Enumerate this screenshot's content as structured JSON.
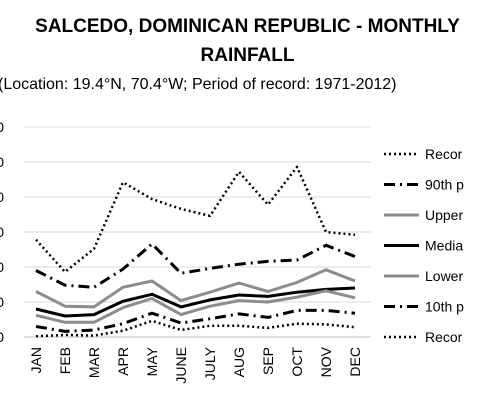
{
  "chart_data": {
    "type": "line",
    "title_line1": "SALCEDO, DOMINICAN REPUBLIC - MONTHLY",
    "title_line2": "RAINFALL",
    "subtitle": "(Location: 19.4°N, 70.4°W; Period of record: 1971-2012)",
    "categories": [
      "JAN",
      "FEB",
      "MAR",
      "APR",
      "MAY",
      "JUNE",
      "JULY",
      "AUG",
      "SEP",
      "OCT",
      "NOV",
      "DEC"
    ],
    "y_tick_labels": [
      "0",
      "0",
      "0",
      "0",
      "0",
      "0",
      "0"
    ],
    "ylim": [
      0,
      300
    ],
    "grid": true,
    "legend_position": "right (cropped)",
    "series": [
      {
        "name": "Recor",
        "style": "dotted",
        "width": 2.5,
        "color": "#000000",
        "values": [
          139,
          93,
          126,
          221,
          197,
          183,
          173,
          236,
          189,
          243,
          150,
          146
        ]
      },
      {
        "name": "90th p",
        "style": "dashdot",
        "width": 3,
        "color": "#000000",
        "values": [
          95,
          74,
          71,
          97,
          133,
          91,
          98,
          104,
          108,
          110,
          131,
          115
        ]
      },
      {
        "name": "Upper",
        "style": "solid",
        "width": 3,
        "color": "#8c8c8c",
        "values": [
          65,
          44,
          43,
          71,
          80,
          52,
          64,
          77,
          65,
          78,
          96,
          80
        ]
      },
      {
        "name": "Media",
        "style": "solid",
        "width": 3,
        "color": "#000000",
        "values": [
          40,
          30,
          32,
          51,
          61,
          43,
          53,
          60,
          58,
          64,
          68,
          70
        ]
      },
      {
        "name": "Lower",
        "style": "solid",
        "width": 3,
        "color": "#8c8c8c",
        "values": [
          31,
          21,
          21,
          42,
          55,
          32,
          44,
          52,
          50,
          57,
          66,
          56
        ]
      },
      {
        "name": "10th p",
        "style": "dashdot",
        "width": 3,
        "color": "#000000",
        "values": [
          15,
          8,
          10,
          19,
          34,
          20,
          26,
          33,
          28,
          38,
          38,
          34
        ]
      },
      {
        "name": "Recor",
        "style": "dotted",
        "width": 2.5,
        "color": "#000000",
        "values": [
          1,
          3,
          2,
          9,
          23,
          10,
          16,
          16,
          13,
          19,
          18,
          14
        ]
      }
    ]
  }
}
